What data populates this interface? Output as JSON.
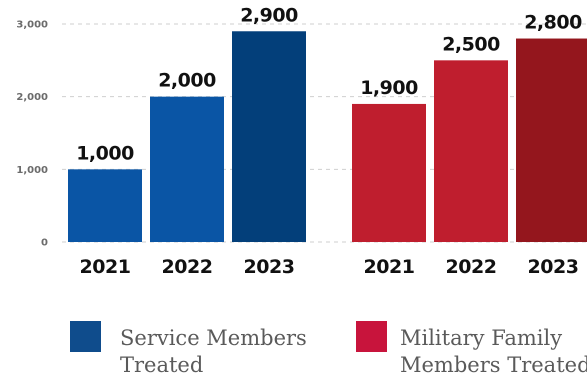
{
  "chart_data": {
    "type": "bar",
    "ylim": [
      0,
      3000
    ],
    "yticks": [
      "0",
      "1,000",
      "2,000",
      "3,000"
    ],
    "ytick_values": [
      0,
      1000,
      2000,
      3000
    ],
    "grid": true,
    "legend_position": "bottom",
    "groups": [
      {
        "name": "Service Members Treated",
        "legend_lines": [
          "Service Members",
          "Treated"
        ],
        "swatch_color": "#0f4c8c",
        "categories": [
          "2021",
          "2022",
          "2023"
        ],
        "values": [
          1000,
          2000,
          2900
        ],
        "labels": [
          "1,000",
          "2,000",
          "2,900"
        ],
        "colors": [
          "#0a55a5",
          "#0a55a5",
          "#033f7a"
        ]
      },
      {
        "name": "Military Family Members Treated",
        "legend_lines": [
          "Military Family",
          "Members Treated"
        ],
        "swatch_color": "#c8143c",
        "categories": [
          "2021",
          "2022",
          "2023"
        ],
        "values": [
          1900,
          2500,
          2800
        ],
        "labels": [
          "1,900",
          "2,500",
          "2,800"
        ],
        "colors": [
          "#bf1e2e",
          "#bf1e2e",
          "#94161d"
        ]
      }
    ]
  }
}
